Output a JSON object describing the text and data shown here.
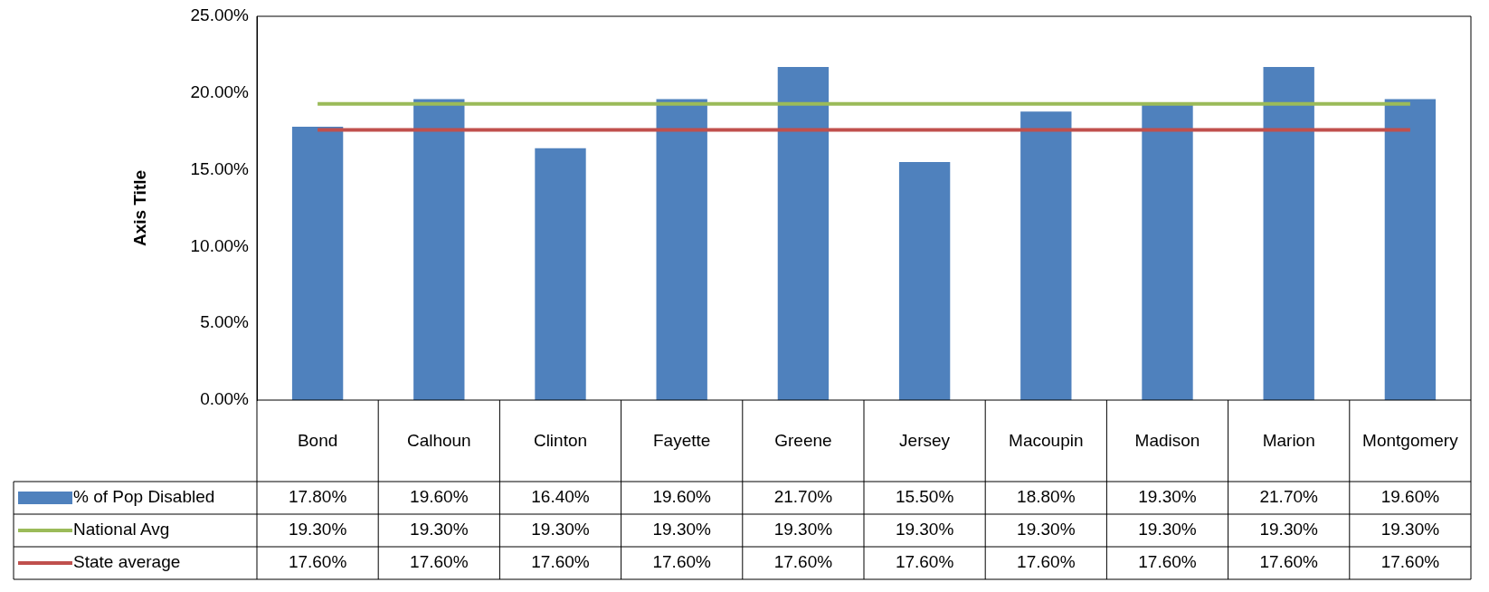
{
  "chart_data": {
    "type": "bar",
    "ylabel": "Axis Title",
    "categories": [
      "Bond",
      "Calhoun",
      "Clinton",
      "Fayette",
      "Greene",
      "Jersey",
      "Macoupin",
      "Madison",
      "Marion",
      "Montgomery"
    ],
    "series": [
      {
        "name": "% of Pop Disabled",
        "color": "#4f81bd",
        "values": [
          17.8,
          19.6,
          16.4,
          19.6,
          21.7,
          15.5,
          18.8,
          19.3,
          21.7,
          19.6
        ],
        "value_labels": [
          "17.80%",
          "19.60%",
          "16.40%",
          "19.60%",
          "21.70%",
          "15.50%",
          "18.80%",
          "19.30%",
          "21.70%",
          "19.60%"
        ]
      },
      {
        "name": "National Avg",
        "type": "line",
        "color": "#9bbb59",
        "values": [
          19.3,
          19.3,
          19.3,
          19.3,
          19.3,
          19.3,
          19.3,
          19.3,
          19.3,
          19.3
        ],
        "value_labels": [
          "19.30%",
          "19.30%",
          "19.30%",
          "19.30%",
          "19.30%",
          "19.30%",
          "19.30%",
          "19.30%",
          "19.30%",
          "19.30%"
        ]
      },
      {
        "name": "State average",
        "type": "line",
        "color": "#c0504d",
        "values": [
          17.6,
          17.6,
          17.6,
          17.6,
          17.6,
          17.6,
          17.6,
          17.6,
          17.6,
          17.6
        ],
        "value_labels": [
          "17.60%",
          "17.60%",
          "17.60%",
          "17.60%",
          "17.60%",
          "17.60%",
          "17.60%",
          "17.60%",
          "17.60%",
          "17.60%"
        ]
      }
    ],
    "ylim": [
      0,
      25
    ],
    "yticks": [
      {
        "value": 0,
        "label": "0.00%"
      },
      {
        "value": 5,
        "label": "5.00%"
      },
      {
        "value": 10,
        "label": "10.00%"
      },
      {
        "value": 15,
        "label": "15.00%"
      },
      {
        "value": 20,
        "label": "20.00%"
      },
      {
        "value": 25,
        "label": "25.00%"
      }
    ],
    "grid": false,
    "legend": "bottom left",
    "marker": "none",
    "line_style": "solid"
  }
}
